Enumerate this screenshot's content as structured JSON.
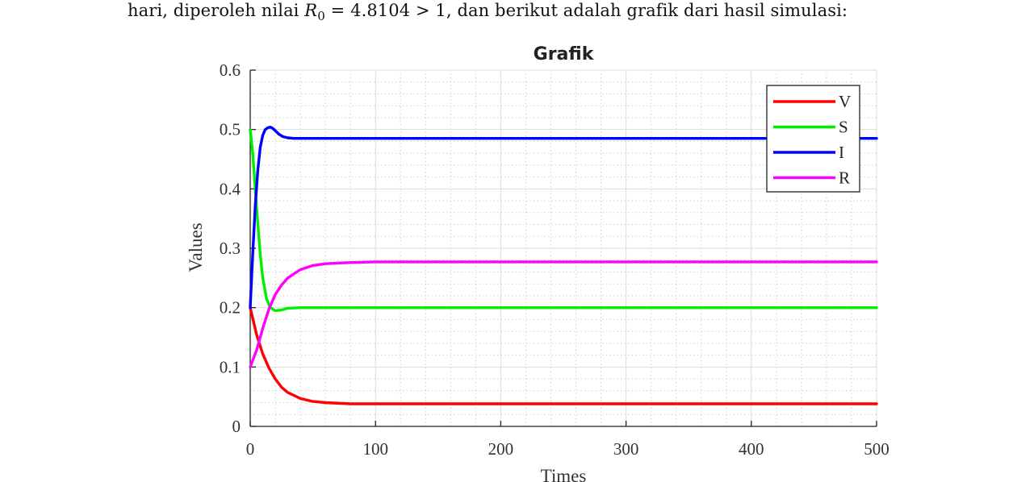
{
  "paragraph": {
    "prefix": "hari, diperoleh nilai ",
    "r_symbol": "R",
    "r_subscript": "0",
    "r_value": " = 4.8104 > 1",
    "suffix": ", dan berikut adalah grafik dari hasil simulasi:"
  },
  "chart_data": {
    "type": "line",
    "title": "Grafik",
    "xlabel": "Times",
    "ylabel": "Values",
    "xlim": [
      0,
      500
    ],
    "ylim": [
      0,
      0.6
    ],
    "xticks": [
      0,
      100,
      200,
      300,
      400,
      500
    ],
    "yticks": [
      0,
      0.1,
      0.2,
      0.3,
      0.4,
      0.5,
      0.6
    ],
    "grid": true,
    "minor_grid": true,
    "legend_position": "top-right",
    "series": [
      {
        "name": "V",
        "color": "#ff0000",
        "x": [
          0,
          5,
          10,
          15,
          20,
          25,
          30,
          40,
          50,
          60,
          80,
          100,
          150,
          200,
          300,
          400,
          500
        ],
        "y": [
          0.2,
          0.155,
          0.122,
          0.098,
          0.08,
          0.066,
          0.057,
          0.047,
          0.042,
          0.04,
          0.038,
          0.038,
          0.038,
          0.038,
          0.038,
          0.038,
          0.038
        ]
      },
      {
        "name": "S",
        "color": "#00ee00",
        "x": [
          0,
          2,
          5,
          8,
          10,
          13,
          16,
          20,
          25,
          30,
          40,
          50,
          60,
          100,
          200,
          300,
          400,
          500
        ],
        "y": [
          0.5,
          0.46,
          0.37,
          0.29,
          0.25,
          0.215,
          0.2,
          0.195,
          0.196,
          0.199,
          0.2,
          0.2,
          0.2,
          0.2,
          0.2,
          0.2,
          0.2,
          0.2
        ]
      },
      {
        "name": "I",
        "color": "#0000ff",
        "x": [
          0,
          2,
          4,
          6,
          8,
          10,
          12,
          14,
          16,
          18,
          20,
          23,
          26,
          30,
          35,
          40,
          50,
          60,
          100,
          200,
          300,
          400,
          500
        ],
        "y": [
          0.2,
          0.29,
          0.37,
          0.43,
          0.47,
          0.49,
          0.5,
          0.503,
          0.504,
          0.502,
          0.498,
          0.492,
          0.488,
          0.486,
          0.485,
          0.485,
          0.485,
          0.485,
          0.485,
          0.485,
          0.485,
          0.485,
          0.485
        ]
      },
      {
        "name": "R",
        "color": "#ff00ff",
        "x": [
          0,
          5,
          10,
          15,
          20,
          25,
          30,
          40,
          50,
          60,
          80,
          100,
          150,
          200,
          300,
          400,
          500
        ],
        "y": [
          0.1,
          0.128,
          0.165,
          0.198,
          0.222,
          0.238,
          0.25,
          0.264,
          0.271,
          0.274,
          0.276,
          0.277,
          0.277,
          0.277,
          0.277,
          0.277,
          0.277
        ]
      }
    ]
  }
}
